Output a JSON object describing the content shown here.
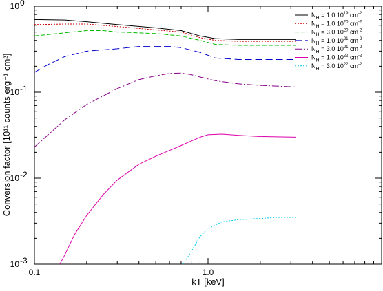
{
  "chart_data": {
    "type": "line",
    "title": "",
    "xlabel": "kT [keV]",
    "ylabel": "Conversion factor [10¹¹ counts erg⁻¹ cm²]",
    "xscale": "log",
    "yscale": "log",
    "xlim": [
      0.1,
      10
    ],
    "ylim": [
      0.001,
      1
    ],
    "x_tick_labels": [
      {
        "value": 0.1,
        "label": "0.1"
      },
      {
        "value": 1,
        "label": "1.0"
      }
    ],
    "y_tick_labels": [
      {
        "value": 1,
        "base": "10",
        "exp": "0"
      },
      {
        "value": 0.1,
        "base": "10",
        "exp": "-1"
      },
      {
        "value": 0.01,
        "base": "10",
        "exp": "-2"
      },
      {
        "value": 0.001,
        "base": "10",
        "exp": "-3"
      }
    ],
    "grid": false,
    "legend_position": "top-right",
    "series": [
      {
        "name_main": "N",
        "name_sub": "H",
        "name_value": " = 1.0 10",
        "name_exp": "19",
        "name_unit": " cm",
        "name_unit_exp": "-2",
        "color": "#000000",
        "dash": "",
        "points": [
          [
            0.1,
            0.7
          ],
          [
            0.15,
            0.69
          ],
          [
            0.2,
            0.66
          ],
          [
            0.3,
            0.61
          ],
          [
            0.5,
            0.56
          ],
          [
            0.7,
            0.52
          ],
          [
            0.9,
            0.45
          ],
          [
            1.1,
            0.42
          ],
          [
            1.5,
            0.41
          ],
          [
            2,
            0.41
          ],
          [
            3.2,
            0.41
          ]
        ]
      },
      {
        "name_main": "N",
        "name_sub": "H",
        "name_value": " = 1.0 10",
        "name_exp": "20",
        "name_unit": " cm",
        "name_unit_exp": "-2",
        "color": "#cc0000",
        "dash": "2,2",
        "points": [
          [
            0.1,
            0.61
          ],
          [
            0.15,
            0.62
          ],
          [
            0.2,
            0.62
          ],
          [
            0.3,
            0.58
          ],
          [
            0.5,
            0.53
          ],
          [
            0.7,
            0.5
          ],
          [
            0.9,
            0.43
          ],
          [
            1.1,
            0.4
          ],
          [
            1.5,
            0.39
          ],
          [
            2,
            0.39
          ],
          [
            3.2,
            0.39
          ]
        ]
      },
      {
        "name_main": "N",
        "name_sub": "H",
        "name_value": " = 3.0 10",
        "name_exp": "20",
        "name_unit": " cm",
        "name_unit_exp": "-2",
        "color": "#00bb00",
        "dash": "6,3",
        "points": [
          [
            0.1,
            0.45
          ],
          [
            0.15,
            0.49
          ],
          [
            0.2,
            0.52
          ],
          [
            0.25,
            0.52
          ],
          [
            0.3,
            0.5
          ],
          [
            0.5,
            0.48
          ],
          [
            0.7,
            0.45
          ],
          [
            0.9,
            0.4
          ],
          [
            1.1,
            0.36
          ],
          [
            1.5,
            0.35
          ],
          [
            2,
            0.35
          ],
          [
            3.2,
            0.35
          ]
        ]
      },
      {
        "name_main": "N",
        "name_sub": "H",
        "name_value": " = 1.0 10",
        "name_exp": "21",
        "name_unit": " cm",
        "name_unit_exp": "-2",
        "color": "#0000cc",
        "dash": "10,5",
        "points": [
          [
            0.1,
            0.17
          ],
          [
            0.12,
            0.21
          ],
          [
            0.15,
            0.26
          ],
          [
            0.2,
            0.3
          ],
          [
            0.3,
            0.32
          ],
          [
            0.4,
            0.34
          ],
          [
            0.5,
            0.34
          ],
          [
            0.6,
            0.34
          ],
          [
            0.7,
            0.33
          ],
          [
            0.9,
            0.29
          ],
          [
            1.1,
            0.25
          ],
          [
            1.5,
            0.24
          ],
          [
            2,
            0.24
          ],
          [
            3.2,
            0.24
          ]
        ]
      },
      {
        "name_main": "N",
        "name_sub": "H",
        "name_value": " = 3.0 10",
        "name_exp": "21",
        "name_unit": " cm",
        "name_unit_exp": "-2",
        "color": "#880088",
        "dash": "10,3,2,3",
        "points": [
          [
            0.1,
            0.023
          ],
          [
            0.12,
            0.032
          ],
          [
            0.15,
            0.048
          ],
          [
            0.2,
            0.072
          ],
          [
            0.3,
            0.11
          ],
          [
            0.4,
            0.14
          ],
          [
            0.5,
            0.155
          ],
          [
            0.6,
            0.165
          ],
          [
            0.7,
            0.167
          ],
          [
            0.8,
            0.16
          ],
          [
            0.9,
            0.15
          ],
          [
            1.1,
            0.136
          ],
          [
            1.5,
            0.125
          ],
          [
            2,
            0.12
          ],
          [
            3.2,
            0.115
          ]
        ]
      },
      {
        "name_main": "N",
        "name_sub": "H",
        "name_value": " = 1.0 10",
        "name_exp": "22",
        "name_unit": " cm",
        "name_unit_exp": "-2",
        "color": "#dd00aa",
        "dash": "",
        "points": [
          [
            0.14,
            0.001
          ],
          [
            0.15,
            0.0013
          ],
          [
            0.17,
            0.0022
          ],
          [
            0.2,
            0.0037
          ],
          [
            0.25,
            0.0065
          ],
          [
            0.3,
            0.0095
          ],
          [
            0.4,
            0.0145
          ],
          [
            0.5,
            0.018
          ],
          [
            0.6,
            0.021
          ],
          [
            0.7,
            0.024
          ],
          [
            0.8,
            0.027
          ],
          [
            0.9,
            0.03
          ],
          [
            1.0,
            0.032
          ],
          [
            1.2,
            0.0325
          ],
          [
            1.5,
            0.0315
          ],
          [
            2,
            0.0305
          ],
          [
            3.2,
            0.03
          ]
        ]
      },
      {
        "name_main": "N",
        "name_sub": "H",
        "name_value": " = 3.0 10",
        "name_exp": "22",
        "name_unit": " cm",
        "name_unit_exp": "-2",
        "color": "#00ccee",
        "dash": "2,2",
        "points": [
          [
            0.72,
            0.001
          ],
          [
            0.8,
            0.0014
          ],
          [
            0.9,
            0.0021
          ],
          [
            1.0,
            0.0026
          ],
          [
            1.2,
            0.0031
          ],
          [
            1.5,
            0.0033
          ],
          [
            2,
            0.0034
          ],
          [
            2.5,
            0.0035
          ],
          [
            3.2,
            0.0035
          ]
        ]
      }
    ]
  }
}
